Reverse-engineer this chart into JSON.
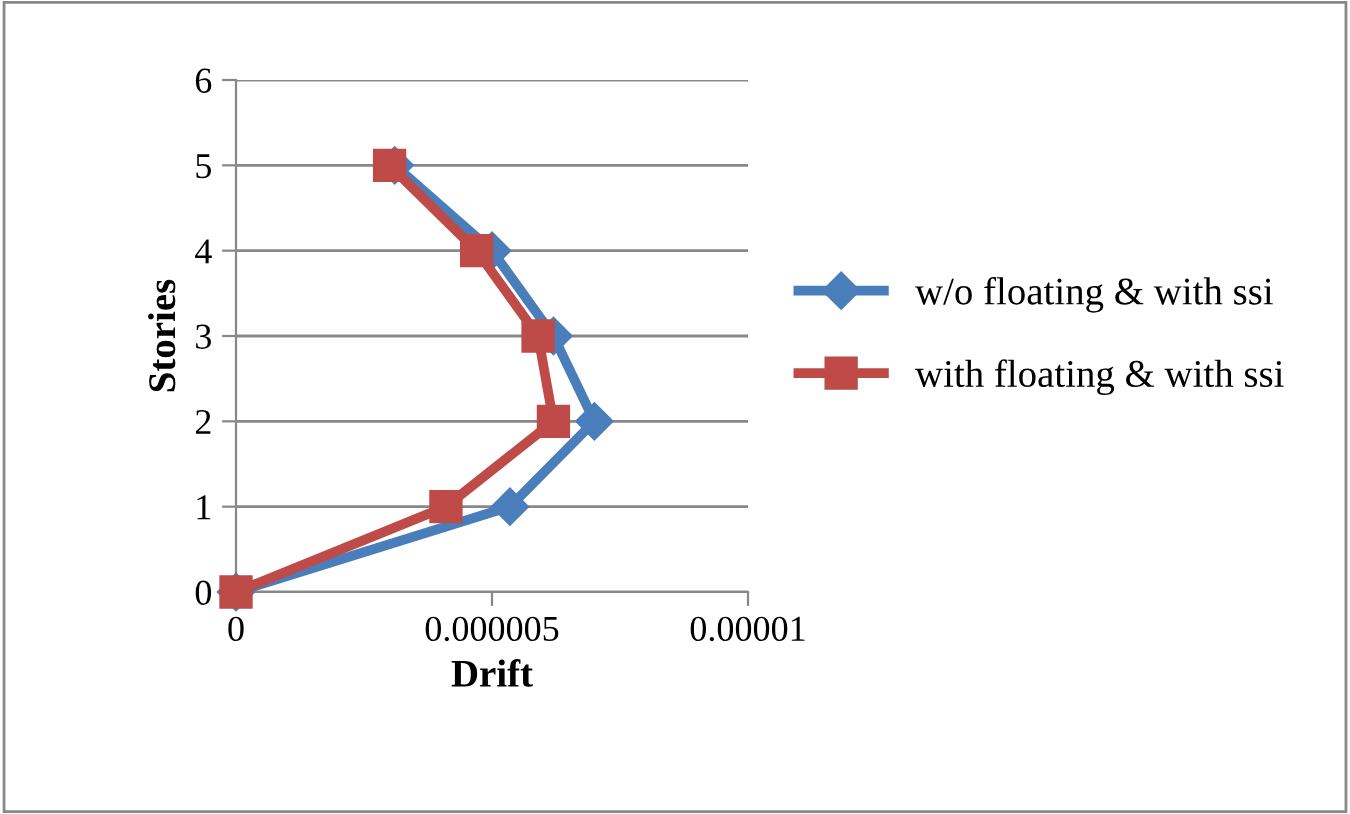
{
  "chart_data": {
    "type": "line",
    "xlabel": "Drift",
    "ylabel": "Stories",
    "series": [
      {
        "name": "w/o floating & with ssi",
        "color": "#4a7ebb",
        "marker": "diamond",
        "x": [
          0,
          5.35e-06,
          7e-06,
          6.2e-06,
          5e-06,
          3.1e-06
        ],
        "values": [
          0,
          1,
          2,
          3,
          4,
          5
        ]
      },
      {
        "name": "with floating & with ssi",
        "color": "#be4b48",
        "marker": "square",
        "x": [
          0,
          4.1e-06,
          6.2e-06,
          5.9e-06,
          4.7e-06,
          3e-06
        ],
        "values": [
          0,
          1,
          2,
          3,
          4,
          5
        ]
      }
    ],
    "xlim": [
      0,
      1e-05
    ],
    "xticks": [
      {
        "value": 0,
        "label": "0"
      },
      {
        "value": 5e-06,
        "label": "0.000005"
      },
      {
        "value": 1e-05,
        "label": "0.00001"
      }
    ],
    "ylim": [
      0,
      6
    ],
    "yticks": [
      0,
      1,
      2,
      3,
      4,
      5,
      6
    ],
    "grid": "y",
    "legend": "right",
    "line_style": "solid"
  }
}
